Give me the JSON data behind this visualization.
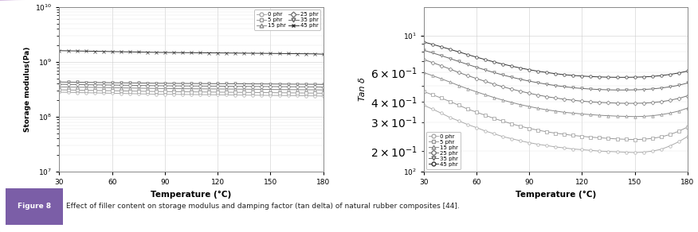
{
  "temp": [
    30,
    35,
    40,
    45,
    50,
    55,
    60,
    65,
    70,
    75,
    80,
    85,
    90,
    95,
    100,
    105,
    110,
    115,
    120,
    125,
    130,
    135,
    140,
    145,
    150,
    155,
    160,
    165,
    170,
    175,
    180
  ],
  "storage_modulus": {
    "0 phr": [
      280000000.0,
      278000000.0,
      276000000.0,
      274000000.0,
      272000000.0,
      270000000.0,
      268000000.0,
      266000000.0,
      264000000.0,
      262000000.0,
      260000000.0,
      258000000.0,
      257000000.0,
      256000000.0,
      255000000.0,
      254000000.0,
      253000000.0,
      252000000.0,
      251000000.0,
      250000000.0,
      249000000.0,
      248000000.0,
      247000000.0,
      246000000.0,
      245000000.0,
      244000000.0,
      243000000.0,
      242000000.0,
      241000000.0,
      240000000.0,
      238000000.0
    ],
    "5 phr": [
      310000000.0,
      308000000.0,
      306000000.0,
      304000000.0,
      302000000.0,
      300000000.0,
      298000000.0,
      296000000.0,
      294000000.0,
      292000000.0,
      290000000.0,
      288000000.0,
      287000000.0,
      286000000.0,
      285000000.0,
      284000000.0,
      283000000.0,
      282000000.0,
      281000000.0,
      280000000.0,
      279000000.0,
      278000000.0,
      277000000.0,
      276000000.0,
      275000000.0,
      274000000.0,
      273000000.0,
      272000000.0,
      271000000.0,
      270000000.0,
      268000000.0
    ],
    "15 phr": [
      350000000.0,
      348000000.0,
      346000000.0,
      344000000.0,
      342000000.0,
      340000000.0,
      338000000.0,
      336000000.0,
      334000000.0,
      332000000.0,
      330000000.0,
      328000000.0,
      327000000.0,
      326000000.0,
      325000000.0,
      324000000.0,
      323000000.0,
      322000000.0,
      321000000.0,
      320000000.0,
      319000000.0,
      318000000.0,
      317000000.0,
      316000000.0,
      315000000.0,
      314000000.0,
      313000000.0,
      312000000.0,
      311000000.0,
      310000000.0,
      308000000.0
    ],
    "25 phr": [
      390000000.0,
      388000000.0,
      386000000.0,
      384000000.0,
      382000000.0,
      380000000.0,
      378000000.0,
      376000000.0,
      374000000.0,
      372000000.0,
      370000000.0,
      368000000.0,
      367000000.0,
      366000000.0,
      365000000.0,
      364000000.0,
      363000000.0,
      362000000.0,
      361000000.0,
      360000000.0,
      359000000.0,
      358000000.0,
      357000000.0,
      356000000.0,
      355000000.0,
      354000000.0,
      353000000.0,
      352000000.0,
      351000000.0,
      350000000.0,
      348000000.0
    ],
    "35 phr": [
      430000000.0,
      428000000.0,
      426000000.0,
      424000000.0,
      422000000.0,
      420000000.0,
      418000000.0,
      416000000.0,
      414000000.0,
      412000000.0,
      410000000.0,
      408000000.0,
      407000000.0,
      406000000.0,
      405000000.0,
      404000000.0,
      403000000.0,
      402000000.0,
      401000000.0,
      400000000.0,
      399000000.0,
      398000000.0,
      397000000.0,
      396000000.0,
      395000000.0,
      394000000.0,
      393000000.0,
      392000000.0,
      391000000.0,
      390000000.0,
      388000000.0
    ],
    "45 phr": [
      1600000000.0,
      1590000000.0,
      1580000000.0,
      1570000000.0,
      1560000000.0,
      1550000000.0,
      1540000000.0,
      1530000000.0,
      1520000000.0,
      1510000000.0,
      1500000000.0,
      1490000000.0,
      1485000000.0,
      1480000000.0,
      1475000000.0,
      1470000000.0,
      1465000000.0,
      1460000000.0,
      1455000000.0,
      1450000000.0,
      1445000000.0,
      1440000000.0,
      1435000000.0,
      1430000000.0,
      1425000000.0,
      1420000000.0,
      1415000000.0,
      1410000000.0,
      1405000000.0,
      1400000000.0,
      1380000000.0
    ]
  },
  "tan_delta": {
    "0 phr": [
      0.38,
      0.36,
      0.34,
      0.32,
      0.305,
      0.29,
      0.278,
      0.265,
      0.255,
      0.245,
      0.238,
      0.231,
      0.225,
      0.22,
      0.216,
      0.212,
      0.209,
      0.206,
      0.204,
      0.202,
      0.2,
      0.199,
      0.198,
      0.197,
      0.196,
      0.197,
      0.2,
      0.205,
      0.215,
      0.228,
      0.245
    ],
    "5 phr": [
      0.46,
      0.44,
      0.42,
      0.4,
      0.38,
      0.36,
      0.345,
      0.33,
      0.316,
      0.304,
      0.293,
      0.283,
      0.275,
      0.268,
      0.262,
      0.257,
      0.253,
      0.249,
      0.246,
      0.243,
      0.241,
      0.239,
      0.237,
      0.236,
      0.235,
      0.236,
      0.239,
      0.244,
      0.252,
      0.264,
      0.28
    ],
    "15 phr": [
      0.6,
      0.575,
      0.55,
      0.525,
      0.5,
      0.478,
      0.458,
      0.44,
      0.423,
      0.408,
      0.395,
      0.383,
      0.373,
      0.364,
      0.356,
      0.35,
      0.344,
      0.34,
      0.336,
      0.333,
      0.33,
      0.328,
      0.326,
      0.325,
      0.324,
      0.325,
      0.328,
      0.333,
      0.34,
      0.35,
      0.365
    ],
    "25 phr": [
      0.72,
      0.69,
      0.66,
      0.63,
      0.6,
      0.575,
      0.552,
      0.53,
      0.51,
      0.492,
      0.476,
      0.462,
      0.449,
      0.438,
      0.428,
      0.42,
      0.413,
      0.407,
      0.402,
      0.398,
      0.395,
      0.393,
      0.391,
      0.39,
      0.39,
      0.391,
      0.394,
      0.399,
      0.407,
      0.418,
      0.433
    ],
    "35 phr": [
      0.82,
      0.79,
      0.76,
      0.73,
      0.7,
      0.672,
      0.646,
      0.622,
      0.6,
      0.58,
      0.562,
      0.546,
      0.532,
      0.52,
      0.509,
      0.5,
      0.492,
      0.485,
      0.48,
      0.476,
      0.473,
      0.471,
      0.47,
      0.47,
      0.471,
      0.473,
      0.477,
      0.483,
      0.491,
      0.502,
      0.518
    ],
    "45 phr": [
      0.92,
      0.89,
      0.86,
      0.83,
      0.8,
      0.771,
      0.744,
      0.719,
      0.696,
      0.675,
      0.656,
      0.639,
      0.624,
      0.611,
      0.6,
      0.59,
      0.582,
      0.576,
      0.571,
      0.567,
      0.564,
      0.562,
      0.561,
      0.561,
      0.562,
      0.564,
      0.568,
      0.575,
      0.584,
      0.596,
      0.612
    ]
  },
  "series_labels": [
    "0 phr",
    "5 phr",
    "15 phr",
    "25 phr",
    "35 phr",
    "45 phr"
  ],
  "sm_colors": [
    "#aaaaaa",
    "#999999",
    "#888888",
    "#777777",
    "#666666",
    "#333333"
  ],
  "td_colors": [
    "#aaaaaa",
    "#999999",
    "#888888",
    "#777777",
    "#666666",
    "#333333"
  ],
  "sm_markers": [
    "o",
    "s",
    "^",
    "D",
    "v",
    "x"
  ],
  "td_markers": [
    "o",
    "s",
    "^",
    "D",
    "v",
    "o"
  ],
  "xlabel": "Temperature (°C)",
  "ylabel1": "Storage modulus(Pa)",
  "ylabel2": "Tan δ",
  "fig_caption": "Effect of filler content on storage modulus and damping factor (tan delta) of natural rubber composites [44].",
  "fig_label": "Figure 8",
  "fig_label_bg": "#7B5EA7",
  "fig_label_color": "#ffffff",
  "border_color": "#c49fd3",
  "grid_color": "#cccccc",
  "background_color": "#ffffff"
}
